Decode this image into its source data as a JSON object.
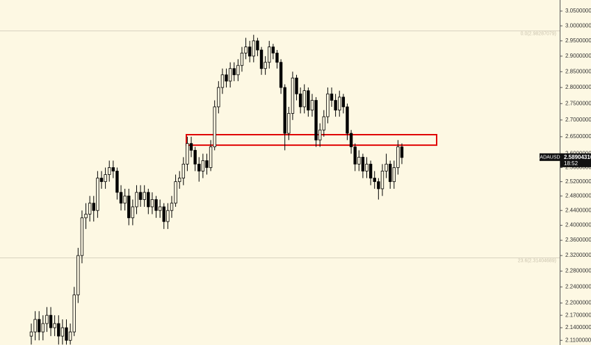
{
  "chart_data": {
    "type": "candlestick",
    "symbol": "ADAUSD",
    "last_price": 2.58904316,
    "countdown": "18:52",
    "log_scale": true,
    "ylim": [
      2.099,
      3.088
    ],
    "yticks": [
      {
        "value": 3.05,
        "label": "3.05000000"
      },
      {
        "value": 3.0,
        "label": "3.00000000"
      },
      {
        "value": 2.95,
        "label": "2.95000000"
      },
      {
        "value": 2.9,
        "label": "2.90000000"
      },
      {
        "value": 2.85,
        "label": "2.85000000"
      },
      {
        "value": 2.8,
        "label": "2.80000000"
      },
      {
        "value": 2.75,
        "label": "2.75000000"
      },
      {
        "value": 2.7,
        "label": "2.70000000"
      },
      {
        "value": 2.65,
        "label": "2.65000000"
      },
      {
        "value": 2.6,
        "label": "2.60000000"
      },
      {
        "value": 2.56,
        "label": "2.56000000"
      },
      {
        "value": 2.52,
        "label": "2.52000000"
      },
      {
        "value": 2.48,
        "label": "2.48000000"
      },
      {
        "value": 2.44,
        "label": "2.44000000"
      },
      {
        "value": 2.4,
        "label": "2.40000000"
      },
      {
        "value": 2.36,
        "label": "2.36000000"
      },
      {
        "value": 2.32,
        "label": "2.32000000"
      },
      {
        "value": 2.28,
        "label": "2.28000000"
      },
      {
        "value": 2.24,
        "label": "2.24000000"
      },
      {
        "value": 2.2,
        "label": "2.20000000"
      },
      {
        "value": 2.17,
        "label": "2.17000000"
      },
      {
        "value": 2.14,
        "label": "2.14000000"
      },
      {
        "value": 2.11,
        "label": "2.11000000"
      }
    ],
    "levels": [
      {
        "value": 2.984,
        "label": "0.0(2.98287079)"
      },
      {
        "value": 2.314,
        "label": "23.6(2.31404689)"
      }
    ],
    "zone": {
      "low": 2.625,
      "high": 2.656,
      "color": "#e00000"
    },
    "color": "#000000",
    "ohlc": [
      [
        2.12,
        2.15,
        2.1,
        2.13
      ],
      [
        2.13,
        2.18,
        2.11,
        2.16
      ],
      [
        2.16,
        2.18,
        2.11,
        2.13
      ],
      [
        2.13,
        2.17,
        2.11,
        2.15
      ],
      [
        2.15,
        2.19,
        2.13,
        2.17
      ],
      [
        2.17,
        2.19,
        2.12,
        2.14
      ],
      [
        2.14,
        2.17,
        2.12,
        2.15
      ],
      [
        2.15,
        2.17,
        2.1,
        2.12
      ],
      [
        2.12,
        2.16,
        2.1,
        2.14
      ],
      [
        2.14,
        2.16,
        2.1,
        2.11
      ],
      [
        2.11,
        2.15,
        2.1,
        2.13
      ],
      [
        2.13,
        2.24,
        2.12,
        2.22
      ],
      [
        2.22,
        2.34,
        2.2,
        2.32
      ],
      [
        2.32,
        2.44,
        2.3,
        2.42
      ],
      [
        2.42,
        2.46,
        2.39,
        2.43
      ],
      [
        2.43,
        2.48,
        2.41,
        2.46
      ],
      [
        2.46,
        2.48,
        2.41,
        2.44
      ],
      [
        2.44,
        2.55,
        2.42,
        2.53
      ],
      [
        2.53,
        2.55,
        2.5,
        2.52
      ],
      [
        2.52,
        2.56,
        2.5,
        2.54
      ],
      [
        2.54,
        2.58,
        2.52,
        2.56
      ],
      [
        2.56,
        2.58,
        2.53,
        2.55
      ],
      [
        2.55,
        2.56,
        2.47,
        2.49
      ],
      [
        2.49,
        2.51,
        2.44,
        2.46
      ],
      [
        2.46,
        2.5,
        2.44,
        2.48
      ],
      [
        2.48,
        2.5,
        2.4,
        2.42
      ],
      [
        2.42,
        2.47,
        2.4,
        2.45
      ],
      [
        2.45,
        2.51,
        2.43,
        2.49
      ],
      [
        2.49,
        2.51,
        2.45,
        2.47
      ],
      [
        2.47,
        2.51,
        2.45,
        2.49
      ],
      [
        2.49,
        2.5,
        2.43,
        2.45
      ],
      [
        2.45,
        2.49,
        2.43,
        2.47
      ],
      [
        2.47,
        2.48,
        2.42,
        2.44
      ],
      [
        2.44,
        2.47,
        2.42,
        2.45
      ],
      [
        2.45,
        2.46,
        2.39,
        2.41
      ],
      [
        2.41,
        2.46,
        2.39,
        2.44
      ],
      [
        2.44,
        2.48,
        2.42,
        2.46
      ],
      [
        2.46,
        2.54,
        2.45,
        2.52
      ],
      [
        2.52,
        2.55,
        2.5,
        2.53
      ],
      [
        2.53,
        2.59,
        2.51,
        2.57
      ],
      [
        2.57,
        2.65,
        2.55,
        2.63
      ],
      [
        2.63,
        2.65,
        2.59,
        2.61
      ],
      [
        2.61,
        2.62,
        2.55,
        2.57
      ],
      [
        2.57,
        2.59,
        2.52,
        2.55
      ],
      [
        2.55,
        2.6,
        2.53,
        2.58
      ],
      [
        2.58,
        2.6,
        2.54,
        2.56
      ],
      [
        2.56,
        2.64,
        2.55,
        2.62
      ],
      [
        2.62,
        2.76,
        2.61,
        2.74
      ],
      [
        2.74,
        2.82,
        2.72,
        2.8
      ],
      [
        2.8,
        2.86,
        2.78,
        2.84
      ],
      [
        2.84,
        2.86,
        2.8,
        2.82
      ],
      [
        2.82,
        2.88,
        2.8,
        2.86
      ],
      [
        2.86,
        2.88,
        2.82,
        2.84
      ],
      [
        2.84,
        2.89,
        2.82,
        2.87
      ],
      [
        2.87,
        2.93,
        2.85,
        2.91
      ],
      [
        2.91,
        2.96,
        2.89,
        2.93
      ],
      [
        2.93,
        2.95,
        2.88,
        2.9
      ],
      [
        2.9,
        2.97,
        2.88,
        2.95
      ],
      [
        2.95,
        2.96,
        2.9,
        2.92
      ],
      [
        2.92,
        2.93,
        2.84,
        2.86
      ],
      [
        2.86,
        2.9,
        2.84,
        2.88
      ],
      [
        2.88,
        2.95,
        2.86,
        2.93
      ],
      [
        2.93,
        2.94,
        2.89,
        2.91
      ],
      [
        2.91,
        2.92,
        2.86,
        2.88
      ],
      [
        2.88,
        2.89,
        2.78,
        2.8
      ],
      [
        2.8,
        2.81,
        2.61,
        2.66
      ],
      [
        2.66,
        2.74,
        2.64,
        2.72
      ],
      [
        2.72,
        2.85,
        2.7,
        2.83
      ],
      [
        2.83,
        2.84,
        2.76,
        2.78
      ],
      [
        2.78,
        2.8,
        2.72,
        2.74
      ],
      [
        2.74,
        2.81,
        2.72,
        2.79
      ],
      [
        2.79,
        2.8,
        2.71,
        2.73
      ],
      [
        2.73,
        2.78,
        2.71,
        2.76
      ],
      [
        2.76,
        2.77,
        2.62,
        2.64
      ],
      [
        2.64,
        2.69,
        2.62,
        2.67
      ],
      [
        2.67,
        2.73,
        2.65,
        2.71
      ],
      [
        2.71,
        2.8,
        2.69,
        2.78
      ],
      [
        2.78,
        2.8,
        2.74,
        2.76
      ],
      [
        2.76,
        2.78,
        2.71,
        2.73
      ],
      [
        2.73,
        2.79,
        2.71,
        2.77
      ],
      [
        2.77,
        2.78,
        2.72,
        2.74
      ],
      [
        2.74,
        2.75,
        2.64,
        2.66
      ],
      [
        2.66,
        2.67,
        2.6,
        2.62
      ],
      [
        2.62,
        2.63,
        2.55,
        2.57
      ],
      [
        2.57,
        2.61,
        2.55,
        2.59
      ],
      [
        2.59,
        2.6,
        2.53,
        2.55
      ],
      [
        2.55,
        2.59,
        2.53,
        2.57
      ],
      [
        2.57,
        2.58,
        2.51,
        2.53
      ],
      [
        2.53,
        2.55,
        2.5,
        2.52
      ],
      [
        2.52,
        2.53,
        2.47,
        2.5
      ],
      [
        2.5,
        2.57,
        2.48,
        2.55
      ],
      [
        2.55,
        2.6,
        2.53,
        2.57
      ],
      [
        2.57,
        2.58,
        2.5,
        2.52
      ],
      [
        2.52,
        2.58,
        2.5,
        2.56
      ],
      [
        2.56,
        2.64,
        2.54,
        2.62
      ],
      [
        2.62,
        2.63,
        2.57,
        2.589
      ]
    ]
  }
}
